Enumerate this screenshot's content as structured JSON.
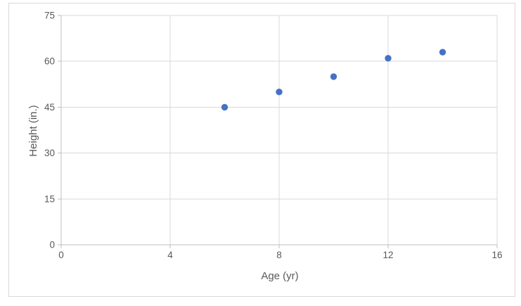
{
  "chart_data": {
    "type": "scatter",
    "title": "",
    "xlabel": "Age (yr)",
    "ylabel": "Height (in.)",
    "xlim": [
      0,
      16
    ],
    "ylim": [
      0,
      75
    ],
    "xticks": [
      0,
      4,
      8,
      12,
      16
    ],
    "yticks": [
      0,
      15,
      30,
      45,
      60,
      75
    ],
    "grid": true,
    "legend": false,
    "points": [
      {
        "x": 6,
        "y": 45
      },
      {
        "x": 8,
        "y": 50
      },
      {
        "x": 10,
        "y": 55
      },
      {
        "x": 12,
        "y": 61
      },
      {
        "x": 14,
        "y": 63
      }
    ],
    "marker_color": "#4472C4",
    "gridline_color": "#D9D9D9",
    "axis_color": "#BFBFBF",
    "border_color": "#D9D9D9",
    "label_color": "#595959"
  }
}
